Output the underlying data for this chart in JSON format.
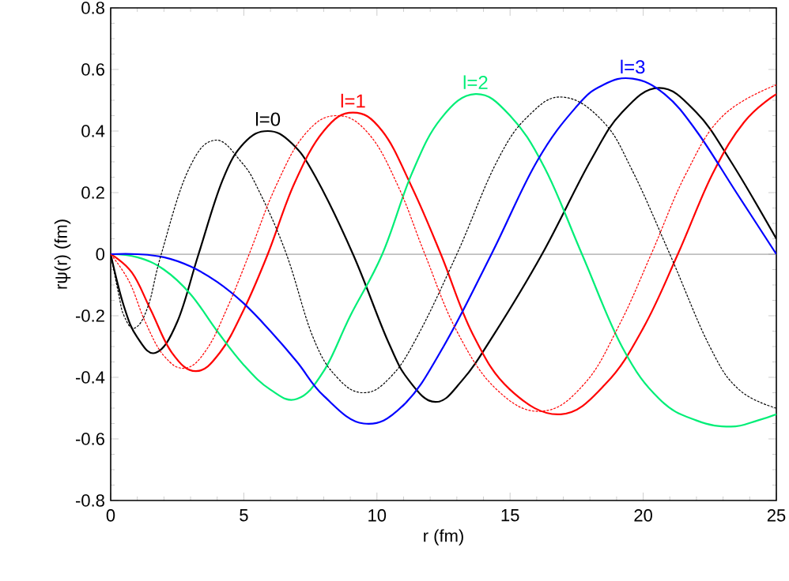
{
  "chart_data": {
    "type": "line",
    "xlabel": "r  (fm)",
    "ylabel": "rψ(r)  (fm)",
    "xlim": [
      0,
      25
    ],
    "ylim": [
      -0.8,
      0.8
    ],
    "xticks": [
      0,
      5,
      10,
      15,
      20,
      25
    ],
    "yticks": [
      -0.8,
      -0.6,
      -0.4,
      -0.2,
      0,
      0.2,
      0.4,
      0.6,
      0.8
    ],
    "marker": "none",
    "series": [
      {
        "color": "#000000",
        "line_style": "solid",
        "x": [
          0,
          0.5,
          1.0,
          1.7,
          2.5,
          3.3,
          4.2,
          5.0,
          5.9,
          6.8,
          7.7,
          9.1,
          10.4,
          11.2,
          12.2,
          13.2,
          14.4,
          16.2,
          18.0,
          19.2,
          20.6,
          22.0,
          23.3,
          25
        ],
        "values": [
          0,
          -0.17,
          -0.27,
          -0.32,
          -0.22,
          0,
          0.24,
          0.36,
          0.4,
          0.36,
          0.25,
          0,
          -0.28,
          -0.41,
          -0.48,
          -0.41,
          -0.26,
          0,
          0.3,
          0.46,
          0.54,
          0.46,
          0.3,
          0.05
        ]
      },
      {
        "color": "#ff0000",
        "line_style": "solid",
        "x": [
          0,
          0.8,
          1.5,
          2.3,
          3.2,
          4.1,
          5.0,
          5.9,
          6.9,
          8.0,
          9.1,
          10.2,
          11.3,
          12.4,
          13.6,
          15.0,
          16.9,
          18.6,
          20.0,
          21.3,
          22.6,
          23.8,
          25
        ],
        "values": [
          0,
          -0.06,
          -0.18,
          -0.32,
          -0.38,
          -0.32,
          -0.18,
          0,
          0.23,
          0.4,
          0.46,
          0.4,
          0.22,
          0,
          -0.26,
          -0.44,
          -0.52,
          -0.42,
          -0.24,
          0,
          0.26,
          0.43,
          0.52
        ]
      },
      {
        "color": "#00ee77",
        "line_style": "solid",
        "x": [
          0,
          1,
          2,
          3,
          4,
          5,
          6,
          7,
          8,
          9,
          10.2,
          11.3,
          12.4,
          13.7,
          15.0,
          16.3,
          17.7,
          19.2,
          20.6,
          22,
          23.3,
          24.3,
          25
        ],
        "values": [
          0,
          -0.01,
          -0.05,
          -0.13,
          -0.25,
          -0.36,
          -0.44,
          -0.47,
          -0.38,
          -0.2,
          0,
          0.26,
          0.44,
          0.52,
          0.45,
          0.28,
          0,
          -0.3,
          -0.47,
          -0.54,
          -0.56,
          -0.54,
          -0.52
        ]
      },
      {
        "color": "#0000ff",
        "line_style": "solid",
        "x": [
          0,
          1,
          2,
          3,
          4,
          5,
          6,
          7,
          8,
          9.5,
          11,
          12.5,
          14.3,
          16,
          17.5,
          18.5,
          19.6,
          20.8,
          22,
          23.5,
          25
        ],
        "values": [
          0,
          0,
          -0.01,
          -0.04,
          -0.09,
          -0.16,
          -0.25,
          -0.35,
          -0.46,
          -0.55,
          -0.49,
          -0.3,
          0,
          0.3,
          0.48,
          0.55,
          0.57,
          0.52,
          0.4,
          0.2,
          0
        ]
      },
      {
        "color": "#000000",
        "line_style": "dashed",
        "x": [
          0,
          0.3,
          0.5,
          0.9,
          1.4,
          1.9,
          2.9,
          3.9,
          4.9,
          5.6,
          6.6,
          7.6,
          8.5,
          9.5,
          10.5,
          11.5,
          13.0,
          14.5,
          15.7,
          17.0,
          18.5,
          19.6,
          21.0,
          22.5,
          23.6,
          25
        ],
        "values": [
          0,
          -0.13,
          -0.2,
          -0.24,
          -0.17,
          0,
          0.27,
          0.37,
          0.3,
          0.2,
          0,
          -0.27,
          -0.4,
          -0.45,
          -0.4,
          -0.27,
          0,
          0.3,
          0.45,
          0.51,
          0.43,
          0.27,
          0,
          -0.3,
          -0.44,
          -0.5
        ]
      },
      {
        "color": "#ff0000",
        "line_style": "dashed",
        "x": [
          0,
          0.7,
          1.3,
          2.0,
          2.8,
          3.6,
          4.4,
          5.2,
          6.2,
          7.3,
          8.5,
          9.7,
          10.8,
          11.8,
          13.0,
          14.5,
          16.2,
          17.8,
          19.1,
          20.3,
          21.6,
          23.0,
          25
        ],
        "values": [
          0,
          -0.09,
          -0.22,
          -0.33,
          -0.37,
          -0.31,
          -0.17,
          0,
          0.22,
          0.39,
          0.45,
          0.39,
          0.22,
          0,
          -0.25,
          -0.44,
          -0.51,
          -0.42,
          -0.23,
          0,
          0.26,
          0.45,
          0.55
        ]
      }
    ],
    "ref_lines": [
      {
        "axis": "y",
        "value": 0,
        "color": "#808080"
      }
    ],
    "annotations": [
      {
        "text": "l=0",
        "x": 5.9,
        "y": 0.4
      },
      {
        "text": "l=1",
        "x": 9.1,
        "y": 0.46
      },
      {
        "text": "l=2",
        "x": 13.7,
        "y": 0.52
      },
      {
        "text": "l=3",
        "x": 19.6,
        "y": 0.57
      }
    ]
  }
}
